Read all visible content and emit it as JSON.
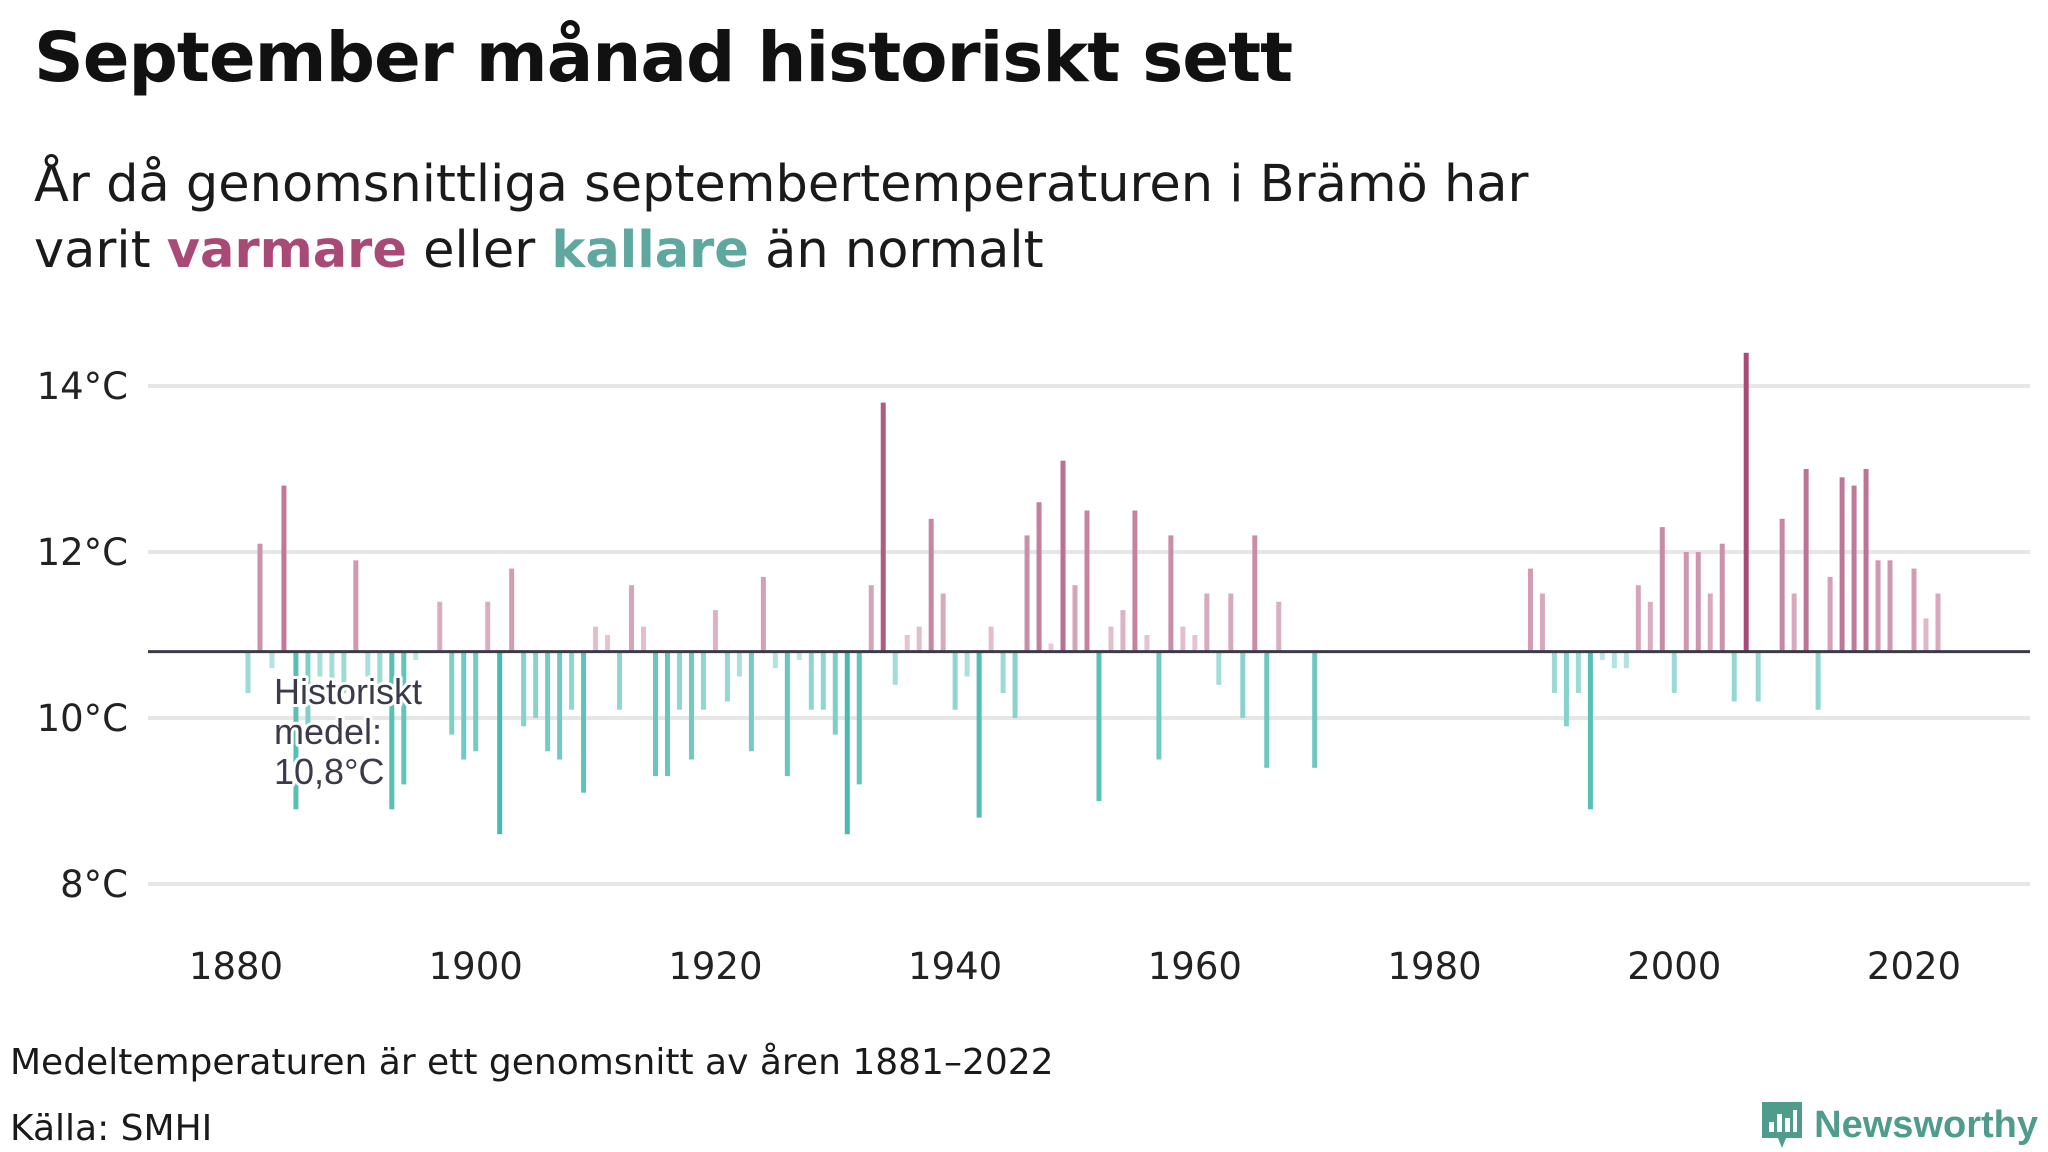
{
  "title": "September månad historiskt sett",
  "subtitle": {
    "prefix": "År då genomsnittliga septembertemperaturen i Brämö har",
    "line2_start": "varit",
    "warm_word": "varmare",
    "middle": "eller",
    "cold_word": "kallare",
    "line2_end": "än normalt"
  },
  "footer": {
    "note": "Medeltemperaturen är ett genomsnitt av åren 1881–2022",
    "source": "Källa: SMHI"
  },
  "brand": {
    "name": "Newsworthy",
    "icon": "newsworthy-logo-icon"
  },
  "colors": {
    "warm_strong": "#a84a75",
    "warm_light": "#efd5df",
    "cold_strong": "#2aaea2",
    "cold_light": "#c9ecea",
    "baseline": "#3a3a4a",
    "grid": "#e6e6e6"
  },
  "chart_data": {
    "type": "bar",
    "title": "September månad historiskt sett",
    "xlabel": "",
    "ylabel": "",
    "baseline": 10.8,
    "baseline_label": [
      "Historiskt",
      "medel:",
      "10,8°C"
    ],
    "xlim": [
      1871,
      2030
    ],
    "ylim": [
      7.5,
      14.6
    ],
    "y_ticks": [
      8,
      10,
      12,
      14
    ],
    "y_tick_labels": [
      "8°C",
      "10°C",
      "12°C",
      "14°C"
    ],
    "x_ticks": [
      1880,
      1900,
      1920,
      1940,
      1960,
      1980,
      2000,
      2020
    ],
    "x_tick_labels": [
      "1880",
      "1900",
      "1920",
      "1940",
      "1960",
      "1980",
      "2000",
      "2020"
    ],
    "unit": "°C",
    "years": [
      1881,
      1882,
      1883,
      1884,
      1885,
      1886,
      1887,
      1888,
      1889,
      1890,
      1891,
      1892,
      1893,
      1894,
      1895,
      1896,
      1897,
      1898,
      1899,
      1900,
      1901,
      1902,
      1903,
      1904,
      1905,
      1906,
      1907,
      1908,
      1909,
      1910,
      1911,
      1912,
      1913,
      1914,
      1915,
      1916,
      1917,
      1918,
      1919,
      1920,
      1921,
      1922,
      1923,
      1924,
      1925,
      1926,
      1927,
      1928,
      1929,
      1930,
      1931,
      1932,
      1933,
      1934,
      1935,
      1936,
      1937,
      1938,
      1939,
      1940,
      1941,
      1942,
      1943,
      1944,
      1945,
      1946,
      1947,
      1948,
      1949,
      1950,
      1951,
      1952,
      1953,
      1954,
      1955,
      1956,
      1957,
      1958,
      1959,
      1960,
      1961,
      1962,
      1963,
      1964,
      1965,
      1966,
      1967,
      1968,
      1969,
      1970,
      1988,
      1989,
      1990,
      1991,
      1992,
      1993,
      1994,
      1995,
      1996,
      1997,
      1998,
      1999,
      2000,
      2001,
      2002,
      2003,
      2004,
      2005,
      2006,
      2007,
      2008,
      2009,
      2010,
      2011,
      2012,
      2013,
      2014,
      2015,
      2016,
      2017,
      2018,
      2019,
      2020,
      2021,
      2022
    ],
    "values": [
      10.3,
      12.1,
      10.6,
      12.8,
      8.9,
      9.8,
      10.5,
      10.4,
      10.3,
      11.9,
      10.5,
      10.3,
      8.9,
      9.2,
      10.7,
      10.8,
      11.4,
      9.8,
      9.5,
      9.6,
      11.4,
      8.6,
      11.8,
      9.9,
      10.0,
      9.6,
      9.5,
      10.1,
      9.1,
      11.1,
      11.0,
      10.1,
      11.6,
      11.1,
      9.3,
      9.3,
      10.1,
      9.5,
      10.1,
      11.3,
      10.2,
      10.5,
      9.6,
      11.7,
      10.6,
      9.3,
      10.7,
      10.1,
      10.1,
      9.8,
      8.6,
      9.2,
      11.6,
      13.8,
      10.4,
      11.0,
      11.1,
      12.4,
      11.5,
      10.1,
      10.5,
      8.8,
      11.1,
      10.3,
      10.0,
      12.2,
      12.6,
      10.9,
      13.1,
      11.6,
      12.5,
      9.0,
      11.1,
      11.3,
      12.5,
      11.0,
      9.5,
      12.2,
      11.1,
      11.0,
      11.5,
      10.4,
      11.5,
      10.0,
      12.2,
      9.4,
      11.4,
      10.8,
      10.8,
      9.4,
      11.8,
      11.5,
      10.3,
      9.9,
      10.3,
      8.9,
      10.7,
      10.6,
      10.6,
      11.6,
      11.4,
      12.3,
      10.3,
      12.0,
      12.0,
      11.5,
      12.1,
      10.2,
      14.4,
      10.2,
      10.8,
      12.4,
      11.5,
      13.0,
      10.1,
      11.7,
      12.9,
      12.8,
      13.0,
      11.9,
      11.9,
      10.8,
      11.8,
      11.2,
      11.5
    ]
  }
}
